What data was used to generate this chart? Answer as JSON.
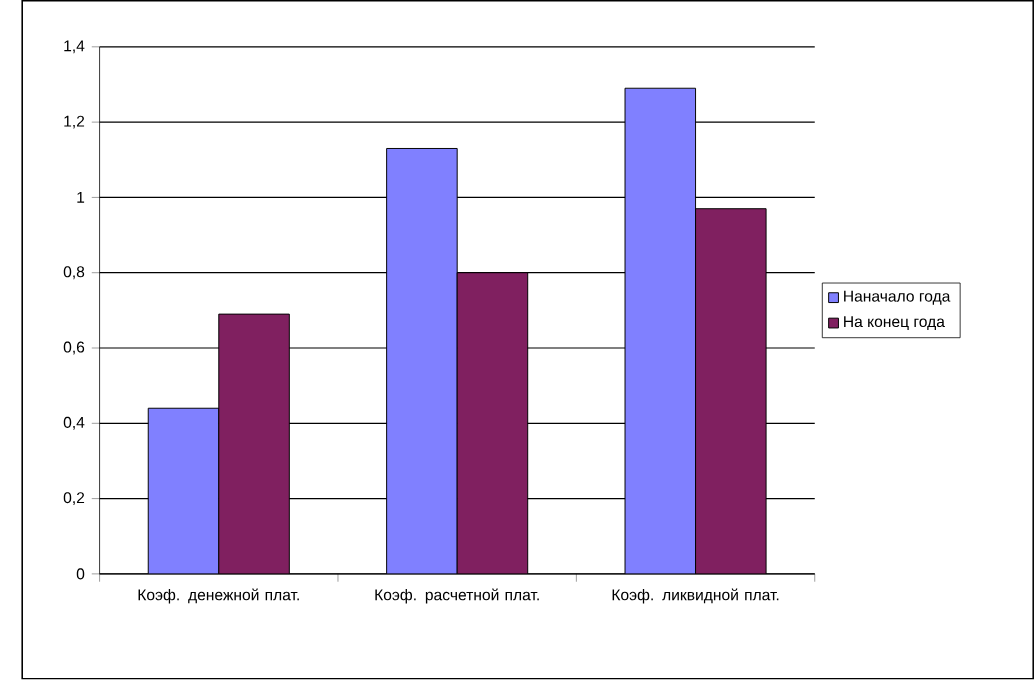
{
  "chart_data": {
    "type": "bar",
    "categories": [
      "Коэф. денежной плат.",
      "Коэф. расчетной плат.",
      "Коэф. ликвидной плат."
    ],
    "series": [
      {
        "name": "Наначало года",
        "color": "#8080ff",
        "values": [
          0.44,
          1.13,
          1.29
        ]
      },
      {
        "name": "На конец года",
        "color": "#802060",
        "values": [
          0.69,
          0.8,
          0.97
        ]
      }
    ],
    "ylim": [
      0,
      1.4
    ],
    "yticks": [
      0,
      {
        "value": 0.2,
        "label": "0,2"
      },
      {
        "value": 0.4,
        "label": "0,4"
      },
      {
        "value": 0.6,
        "label": "0,6"
      },
      {
        "value": 0.8,
        "label": "0,8"
      },
      1,
      {
        "value": 1.2,
        "label": "1,2"
      },
      {
        "value": 1.4,
        "label": "1,4"
      }
    ],
    "grid": "y",
    "legend": "right"
  }
}
